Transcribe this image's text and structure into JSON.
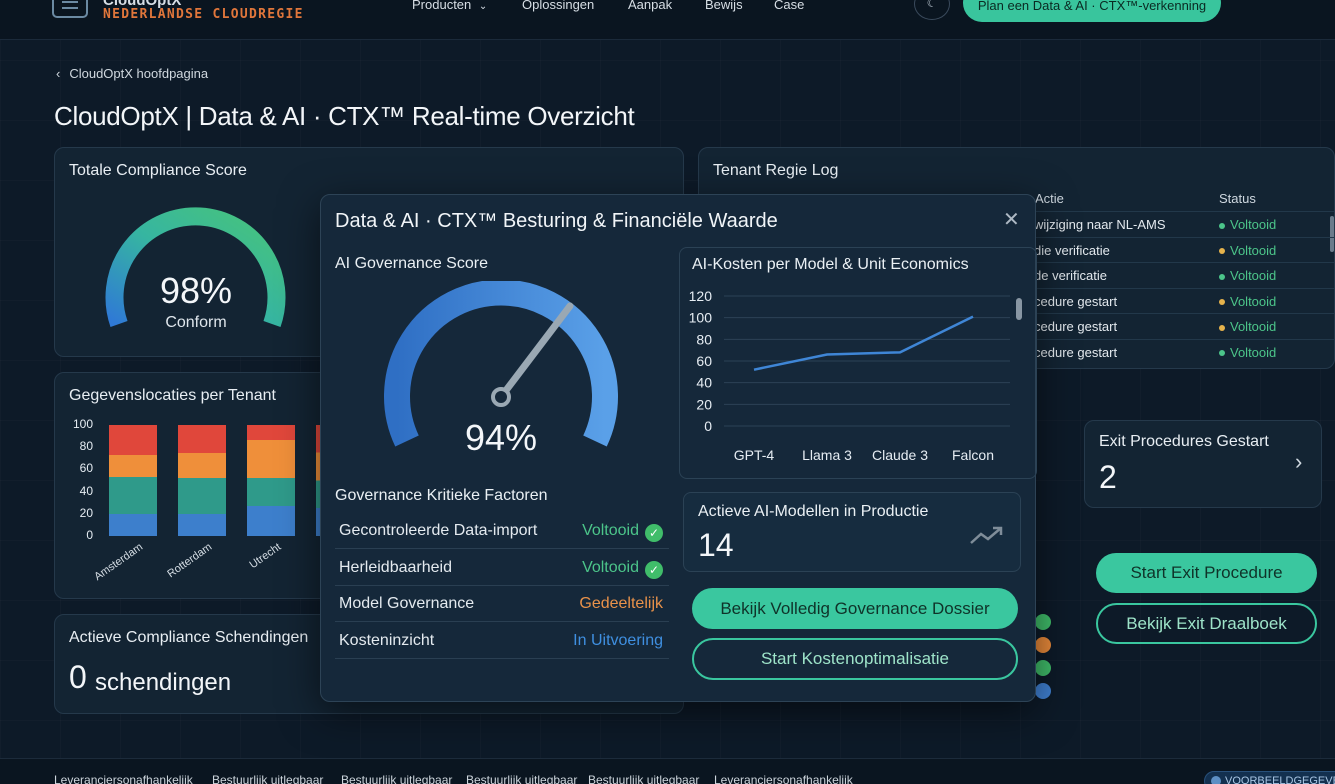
{
  "nav": {
    "brand_top": "CloudOptX",
    "brand_bottom": "NEDERLANDSE CLOUDREGIE",
    "links": [
      "Producten",
      "Oplossingen",
      "Aanpak",
      "Bewijs",
      "Case"
    ],
    "cta": "Plan een Data & AI · CTX™-verkenning"
  },
  "breadcrumb": "CloudOptX hoofdpagina",
  "page_title": "CloudOptX | Data & AI · CTX™ Real-time Overzicht",
  "compliance": {
    "title": "Totale Compliance Score",
    "value": "98%",
    "label": "Conform",
    "level_percent": 98
  },
  "locations": {
    "title": "Gegevenslocaties per Tenant",
    "ticks": [
      "100",
      "80",
      "60",
      "40",
      "20",
      "0"
    ],
    "tenants": [
      "Amsterdam",
      "Rotterdam",
      "Utrecht"
    ]
  },
  "violations": {
    "title": "Actieve Compliance Schendingen",
    "count": "0",
    "unit": "schendingen"
  },
  "log": {
    "title": "Tenant Regie Log",
    "col_action": "Actie",
    "col_status": "Status",
    "rows": [
      {
        "action": "wijziging naar NL-AMS",
        "status": "Voltooid",
        "color": "#4cc58a"
      },
      {
        "action": "die verificatie",
        "status": "Voltooid",
        "color": "#e6b34c"
      },
      {
        "action": "de verificatie",
        "status": "Voltooid",
        "color": "#4cc58a"
      },
      {
        "action": "cedure gestart",
        "status": "Voltooid",
        "color": "#e6b34c"
      },
      {
        "action": "cedure gestart",
        "status": "Voltooid",
        "color": "#e6b34c"
      },
      {
        "action": "cedure gestart",
        "status": "Voltooid",
        "color": "#4cc58a"
      }
    ]
  },
  "exit": {
    "title": "Exit Procedures Gestart",
    "count": "2",
    "start_btn": "Start Exit Procedure",
    "playbook_btn": "Bekijk Exit Draalboek"
  },
  "modal": {
    "title": "Data & AI · CTX™ Besturing & Financiële Waarde",
    "gov_title": "AI Governance Score",
    "gov_value": "94%",
    "gov_level_percent": 94,
    "factors_title": "Governance Kritieke Factoren",
    "factors": [
      {
        "label": "Gecontroleerde Data-import",
        "status": "Voltooid",
        "color": "#4cc58a",
        "check": true
      },
      {
        "label": "Herleidbaarheid",
        "status": "Voltooid",
        "color": "#4cc58a",
        "check": true
      },
      {
        "label": "Model Governance",
        "status": "Gedeeltelijk",
        "color": "#e9924a",
        "check": false
      },
      {
        "label": "Kosteninzicht",
        "status": "In Uitvoering",
        "color": "#3f8fe0",
        "check": false
      }
    ],
    "cost_title": "AI-Kosten per Model & Unit Economics",
    "models_title": "Actieve AI-Modellen in Productie",
    "models_count": "14",
    "btn_dossier": "Bekijk Volledig Governance Dossier",
    "btn_cost": "Start Kostenoptimalisatie"
  },
  "chart_data": {
    "type": "line",
    "categories": [
      "GPT-4",
      "Llama 3",
      "Claude 3",
      "Falcon"
    ],
    "series": [
      {
        "values": [
          52,
          66,
          68,
          101
        ]
      }
    ],
    "ylim": [
      0,
      120
    ],
    "yticks": [
      "120",
      "100",
      "80",
      "60",
      "40",
      "20",
      "0"
    ],
    "grid": true
  },
  "footer": {
    "items": [
      "Leveranciersonafhankelijk",
      "Bestuurlijk uitlegbaar",
      "Bestuurlijk uitlegbaar",
      "Bestuurlijk uitlegbaar",
      "Bestuurlijk uitlegbaar",
      "Leveranciersonafhankelijk"
    ],
    "badge": "VOORBEELDGEGEVENS"
  }
}
